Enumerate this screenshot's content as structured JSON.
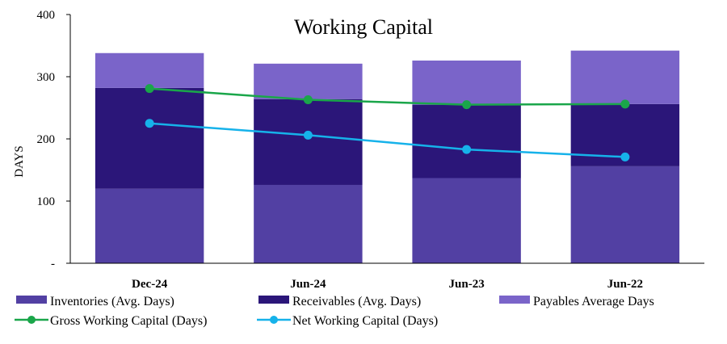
{
  "chart_data": {
    "type": "bar",
    "title": "Working Capital",
    "ylabel": "DAYS",
    "xlabel": "",
    "ylim": [
      0,
      400
    ],
    "y_ticks": [
      "-",
      "100",
      "200",
      "300",
      "400"
    ],
    "y_tick_values": [
      0,
      100,
      200,
      300,
      400
    ],
    "categories": [
      "Dec-24",
      "Jun-24",
      "Jun-23",
      "Jun-22"
    ],
    "stacked": true,
    "grid": false,
    "legend_position": "bottom",
    "series": [
      {
        "name": "Inventories (Avg. Days)",
        "kind": "bar",
        "color": "#5240a3",
        "values": [
          120,
          126,
          137,
          156
        ]
      },
      {
        "name": "Receivables (Avg. Days)",
        "kind": "bar",
        "color": "#2b1679",
        "values": [
          162,
          138,
          118,
          100
        ]
      },
      {
        "name": "Payables Average Days",
        "kind": "bar",
        "color": "#7a64c9",
        "values": [
          56,
          57,
          71,
          86
        ]
      },
      {
        "name": "Gross Working Capital (Days)",
        "kind": "line",
        "color": "#1aa64a",
        "values": [
          281,
          263,
          255,
          256
        ]
      },
      {
        "name": "Net Working Capital (Days)",
        "kind": "line",
        "color": "#16b2ea",
        "values": [
          225,
          206,
          183,
          171
        ]
      }
    ]
  }
}
